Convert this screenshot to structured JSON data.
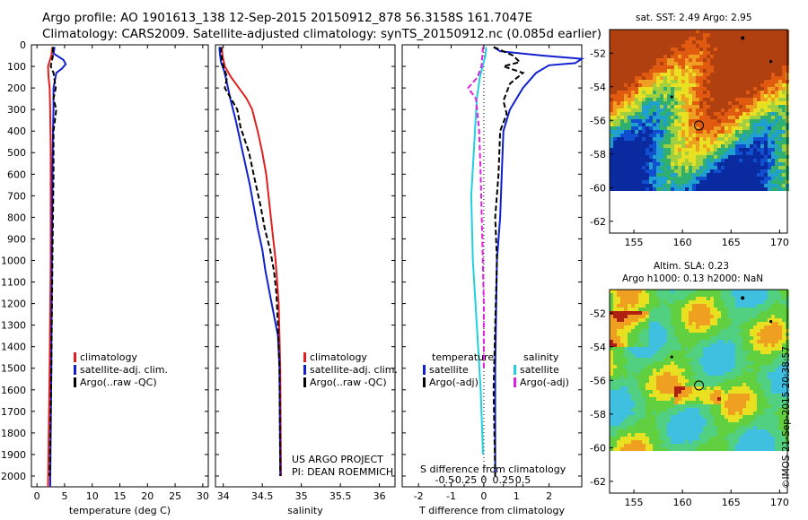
{
  "header": {
    "title_line1": "Argo profile: AO 1901613_138 12-Sep-2015 20150912_878 56.3158S 161.7047E",
    "title_line2": "Climatology: CARS2009. Satellite-adjusted climatology: synTS_20150912.nc (0.085d earlier)"
  },
  "maps": {
    "sst_title": "sat. SST: 2.49 Argo: 2.95",
    "sla_title1": "Altim. SLA: 0.23",
    "sla_title2": "Argo h1000: 0.13 h2000: NaN",
    "lon_ticks": [
      "155",
      "160",
      "165",
      "170"
    ],
    "lat_ticks": [
      "-52",
      "-54",
      "-56",
      "-58",
      "-60",
      "-62"
    ],
    "argo_marker": {
      "lon": 161.7,
      "lat": -56.3
    }
  },
  "footer": {
    "stamp": "©IMOS 21-Sep-2015 20:38:57"
  },
  "colors": {
    "climatology": "#e02020",
    "satellite": "#1020d0",
    "argo": "#000000",
    "sat_salinity": "#20d0e0",
    "argo_salinity": "#e020e0"
  },
  "chart_data": [
    {
      "type": "line",
      "xlabel": "temperature (deg C)",
      "ylabel": "",
      "xlim": [
        -1,
        31
      ],
      "ylim": [
        2050,
        0
      ],
      "xticks": [
        0,
        5,
        10,
        15,
        20,
        25,
        30
      ],
      "yticks": [
        0,
        100,
        200,
        300,
        400,
        500,
        600,
        700,
        800,
        900,
        1000,
        1100,
        1200,
        1300,
        1400,
        1500,
        1600,
        1700,
        1800,
        1900,
        2000
      ],
      "legend": [
        "climatology",
        "satellite-adj. clim.",
        "Argo(..raw -QC)"
      ],
      "series": [
        {
          "name": "climatology",
          "style": "solid",
          "color": "#e02020",
          "points": [
            [
              2.8,
              10
            ],
            [
              2.6,
              50
            ],
            [
              2.0,
              100
            ],
            [
              2.1,
              150
            ],
            [
              2.3,
              200
            ],
            [
              2.4,
              300
            ],
            [
              2.5,
              500
            ],
            [
              2.5,
              1000
            ],
            [
              2.3,
              1500
            ],
            [
              2.0,
              2050
            ]
          ]
        },
        {
          "name": "satellite-adj. clim.",
          "style": "solid",
          "color": "#1020d0",
          "points": [
            [
              3.2,
              10
            ],
            [
              3.0,
              40
            ],
            [
              4.8,
              70
            ],
            [
              5.2,
              90
            ],
            [
              4.5,
              110
            ],
            [
              3.5,
              130
            ],
            [
              3.0,
              200
            ],
            [
              3.0,
              300
            ],
            [
              2.9,
              400
            ],
            [
              2.8,
              600
            ],
            [
              2.7,
              1000
            ],
            [
              2.6,
              1500
            ],
            [
              2.4,
              2050
            ]
          ]
        },
        {
          "name": "Argo(..raw -QC)",
          "style": "dashed",
          "color": "#000000",
          "points": [
            [
              2.9,
              10
            ],
            [
              2.9,
              50
            ],
            [
              2.5,
              100
            ],
            [
              3.0,
              130
            ],
            [
              3.4,
              200
            ],
            [
              3.0,
              250
            ],
            [
              3.5,
              300
            ],
            [
              3.0,
              400
            ],
            [
              3.0,
              600
            ],
            [
              2.8,
              1000
            ],
            [
              2.6,
              1500
            ],
            [
              2.4,
              1900
            ],
            [
              2.3,
              2000
            ]
          ]
        }
      ]
    },
    {
      "type": "line",
      "xlabel": "salinity",
      "ylabel": "",
      "xlim": [
        33.9,
        36.2
      ],
      "ylim": [
        2050,
        0
      ],
      "xticks": [
        34,
        34.5,
        35,
        35.5,
        36
      ],
      "xticklabels": [
        "34",
        "34.5",
        "35",
        "35.5",
        "36"
      ],
      "legend": [
        "climatology",
        "satellite-adj. clim."
      ],
      "legend_argo": "Argo(..raw -QC)",
      "annotation": [
        "US ARGO PROJECT",
        "PI: DEAN ROEMMICH"
      ],
      "series": [
        {
          "name": "climatology",
          "style": "solid",
          "color": "#e02020",
          "points": [
            [
              33.98,
              10
            ],
            [
              33.99,
              50
            ],
            [
              34.02,
              100
            ],
            [
              34.1,
              150
            ],
            [
              34.2,
              200
            ],
            [
              34.3,
              250
            ],
            [
              34.37,
              300
            ],
            [
              34.44,
              400
            ],
            [
              34.5,
              500
            ],
            [
              34.55,
              600
            ],
            [
              34.61,
              800
            ],
            [
              34.67,
              1000
            ],
            [
              34.71,
              1200
            ],
            [
              34.73,
              1500
            ],
            [
              34.74,
              2000
            ]
          ]
        },
        {
          "name": "satellite-adj. clim.",
          "style": "solid",
          "color": "#1020d0",
          "points": [
            [
              33.95,
              10
            ],
            [
              33.96,
              50
            ],
            [
              33.97,
              80
            ],
            [
              34.01,
              120
            ],
            [
              34.05,
              180
            ],
            [
              34.09,
              250
            ],
            [
              34.16,
              350
            ],
            [
              34.25,
              500
            ],
            [
              34.34,
              650
            ],
            [
              34.44,
              850
            ],
            [
              34.5,
              950
            ],
            [
              34.54,
              1050
            ],
            [
              34.62,
              1200
            ],
            [
              34.7,
              1350
            ],
            [
              34.72,
              1500
            ],
            [
              34.73,
              2000
            ]
          ]
        },
        {
          "name": "Argo(..raw -QC)",
          "style": "dashed",
          "color": "#000000",
          "points": [
            [
              33.97,
              10
            ],
            [
              33.98,
              60
            ],
            [
              34.0,
              100
            ],
            [
              34.05,
              150
            ],
            [
              34.02,
              200
            ],
            [
              34.1,
              250
            ],
            [
              34.18,
              300
            ],
            [
              34.22,
              380
            ],
            [
              34.33,
              500
            ],
            [
              34.4,
              620
            ],
            [
              34.48,
              750
            ],
            [
              34.53,
              850
            ],
            [
              34.6,
              950
            ],
            [
              34.65,
              1050
            ],
            [
              34.68,
              1150
            ],
            [
              34.7,
              1300
            ],
            [
              34.72,
              1500
            ],
            [
              34.73,
              2000
            ]
          ]
        }
      ]
    },
    {
      "type": "line",
      "xlabel": "T difference from climatology",
      "xlabel_top": "S difference from climatology",
      "ylabel": "",
      "xlim": [
        -2.5,
        3.0
      ],
      "ylim": [
        2050,
        0
      ],
      "xticks": [
        -2,
        -1,
        0,
        1,
        2
      ],
      "xticklabels": [
        "-2",
        "-1",
        "0",
        "1",
        "2"
      ],
      "s_ticks": [
        -0.5,
        -0.25,
        0,
        0.25,
        0.5
      ],
      "s_ticklabels": [
        "-0.5",
        "-0.25",
        "0",
        "0.25",
        "0.5"
      ],
      "legend_groups": {
        "temperature": [
          "satellite",
          "Argo(-adj)"
        ],
        "salinity": [
          "satellite",
          "Argo(-adj)"
        ]
      },
      "legend_titles": [
        "temperature",
        "salinity"
      ],
      "series": [
        {
          "name": "temperature satellite",
          "style": "solid",
          "color": "#1020d0",
          "points": [
            [
              0.3,
              10
            ],
            [
              0.5,
              30
            ],
            [
              1.8,
              50
            ],
            [
              3.0,
              65
            ],
            [
              2.8,
              85
            ],
            [
              2.0,
              95
            ],
            [
              1.6,
              130
            ],
            [
              1.2,
              200
            ],
            [
              0.8,
              300
            ],
            [
              0.6,
              400
            ],
            [
              0.55,
              600
            ],
            [
              0.5,
              800
            ],
            [
              0.4,
              1000
            ],
            [
              0.35,
              1500
            ],
            [
              0.35,
              2000
            ]
          ]
        },
        {
          "name": "temperature Argo(-adj)",
          "style": "dashed",
          "color": "#000000",
          "points": [
            [
              0.3,
              10
            ],
            [
              0.9,
              50
            ],
            [
              1.1,
              80
            ],
            [
              0.6,
              100
            ],
            [
              1.2,
              130
            ],
            [
              0.8,
              180
            ],
            [
              0.6,
              260
            ],
            [
              0.7,
              320
            ],
            [
              0.5,
              400
            ],
            [
              0.45,
              600
            ],
            [
              0.35,
              800
            ],
            [
              0.4,
              1000
            ],
            [
              0.35,
              1300
            ],
            [
              0.3,
              1600
            ],
            [
              0.35,
              2000
            ]
          ]
        },
        {
          "name": "salinity satellite",
          "style": "solid",
          "color": "#20d0e0",
          "points": [
            [
              0.03,
              10
            ],
            [
              0.02,
              50
            ],
            [
              -0.05,
              150
            ],
            [
              -0.09,
              250
            ],
            [
              -0.12,
              450
            ],
            [
              -0.16,
              700
            ],
            [
              -0.14,
              1000
            ],
            [
              -0.09,
              1300
            ],
            [
              -0.04,
              1600
            ],
            [
              -0.01,
              1900
            ]
          ]
        },
        {
          "name": "salinity Argo(-adj)",
          "style": "dashed",
          "color": "#e020e0",
          "points": [
            [
              -0.01,
              10
            ],
            [
              -0.03,
              100
            ],
            [
              -0.08,
              150
            ],
            [
              -0.2,
              200
            ],
            [
              -0.1,
              250
            ],
            [
              -0.06,
              400
            ],
            [
              -0.04,
              600
            ],
            [
              -0.02,
              900
            ],
            [
              0.0,
              1200
            ],
            [
              0.0,
              1500
            ]
          ]
        }
      ]
    }
  ]
}
